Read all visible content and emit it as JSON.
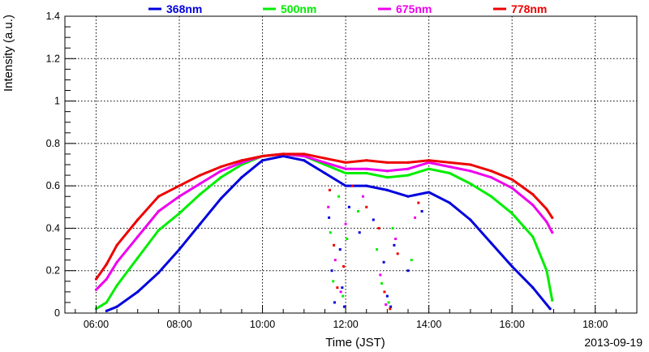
{
  "chart_data": {
    "type": "scatter",
    "xlabel": "Time (JST)",
    "ylabel": "Intensity (a.u.)",
    "date_label": "2013-09-19",
    "xlim": [
      "05:15",
      "19:00"
    ],
    "ylim": [
      0,
      1.4
    ],
    "x_ticks": [
      "06:00",
      "08:00",
      "10:00",
      "12:00",
      "14:00",
      "16:00",
      "18:00"
    ],
    "y_ticks": [
      "0",
      "0.2",
      "0.4",
      "0.6",
      "0.8",
      "1",
      "1.2",
      "1.4"
    ],
    "grid": true,
    "legend_position": "top",
    "series": [
      {
        "name": "368nm",
        "color": "#0000dd",
        "points": [
          [
            "06:15",
            0.01
          ],
          [
            "06:30",
            0.03
          ],
          [
            "07:00",
            0.1
          ],
          [
            "07:30",
            0.19
          ],
          [
            "08:00",
            0.3
          ],
          [
            "08:30",
            0.42
          ],
          [
            "09:00",
            0.54
          ],
          [
            "09:30",
            0.64
          ],
          [
            "10:00",
            0.72
          ],
          [
            "10:30",
            0.74
          ],
          [
            "11:00",
            0.72
          ],
          [
            "11:30",
            0.66
          ],
          [
            "12:00",
            0.6
          ],
          [
            "12:30",
            0.6
          ],
          [
            "13:00",
            0.58
          ],
          [
            "13:30",
            0.55
          ],
          [
            "14:00",
            0.57
          ],
          [
            "14:30",
            0.52
          ],
          [
            "15:00",
            0.44
          ],
          [
            "15:30",
            0.33
          ],
          [
            "16:00",
            0.22
          ],
          [
            "16:30",
            0.12
          ],
          [
            "16:55",
            0.02
          ]
        ],
        "scatter": [
          [
            "11:36",
            0.45
          ],
          [
            "11:40",
            0.2
          ],
          [
            "11:44",
            0.05
          ],
          [
            "11:52",
            0.3
          ],
          [
            "11:55",
            0.12
          ],
          [
            "11:58",
            0.03
          ],
          [
            "12:05",
            0.5
          ],
          [
            "12:20",
            0.38
          ],
          [
            "12:40",
            0.44
          ],
          [
            "12:55",
            0.24
          ],
          [
            "13:00",
            0.08
          ],
          [
            "13:05",
            0.03
          ],
          [
            "13:10",
            0.32
          ],
          [
            "13:30",
            0.2
          ],
          [
            "13:50",
            0.48
          ]
        ]
      },
      {
        "name": "500nm",
        "color": "#00ee00",
        "points": [
          [
            "06:00",
            0.02
          ],
          [
            "06:15",
            0.05
          ],
          [
            "06:30",
            0.13
          ],
          [
            "07:00",
            0.26
          ],
          [
            "07:30",
            0.39
          ],
          [
            "08:00",
            0.47
          ],
          [
            "08:30",
            0.56
          ],
          [
            "09:00",
            0.64
          ],
          [
            "09:30",
            0.7
          ],
          [
            "10:00",
            0.74
          ],
          [
            "10:30",
            0.75
          ],
          [
            "11:00",
            0.74
          ],
          [
            "11:30",
            0.7
          ],
          [
            "12:00",
            0.66
          ],
          [
            "12:30",
            0.66
          ],
          [
            "13:00",
            0.64
          ],
          [
            "13:30",
            0.65
          ],
          [
            "14:00",
            0.68
          ],
          [
            "14:30",
            0.66
          ],
          [
            "15:00",
            0.61
          ],
          [
            "15:30",
            0.55
          ],
          [
            "16:00",
            0.47
          ],
          [
            "16:30",
            0.36
          ],
          [
            "16:50",
            0.2
          ],
          [
            "16:58",
            0.06
          ]
        ],
        "scatter": [
          [
            "11:38",
            0.38
          ],
          [
            "11:42",
            0.15
          ],
          [
            "11:50",
            0.55
          ],
          [
            "11:56",
            0.08
          ],
          [
            "12:02",
            0.35
          ],
          [
            "12:18",
            0.48
          ],
          [
            "12:45",
            0.3
          ],
          [
            "12:52",
            0.14
          ],
          [
            "13:02",
            0.05
          ],
          [
            "13:08",
            0.4
          ],
          [
            "13:35",
            0.25
          ]
        ]
      },
      {
        "name": "675nm",
        "color": "#ee00ee",
        "points": [
          [
            "06:00",
            0.11
          ],
          [
            "06:15",
            0.16
          ],
          [
            "06:30",
            0.24
          ],
          [
            "07:00",
            0.36
          ],
          [
            "07:30",
            0.48
          ],
          [
            "08:00",
            0.55
          ],
          [
            "08:30",
            0.61
          ],
          [
            "09:00",
            0.67
          ],
          [
            "09:30",
            0.71
          ],
          [
            "10:00",
            0.74
          ],
          [
            "10:30",
            0.75
          ],
          [
            "11:00",
            0.74
          ],
          [
            "11:30",
            0.71
          ],
          [
            "12:00",
            0.68
          ],
          [
            "12:30",
            0.68
          ],
          [
            "13:00",
            0.67
          ],
          [
            "13:30",
            0.68
          ],
          [
            "14:00",
            0.71
          ],
          [
            "14:30",
            0.69
          ],
          [
            "15:00",
            0.67
          ],
          [
            "15:30",
            0.64
          ],
          [
            "16:00",
            0.59
          ],
          [
            "16:30",
            0.51
          ],
          [
            "16:50",
            0.43
          ],
          [
            "16:58",
            0.38
          ]
        ],
        "scatter": [
          [
            "11:35",
            0.5
          ],
          [
            "11:45",
            0.25
          ],
          [
            "11:53",
            0.1
          ],
          [
            "12:00",
            0.42
          ],
          [
            "12:25",
            0.55
          ],
          [
            "12:50",
            0.18
          ],
          [
            "12:58",
            0.04
          ],
          [
            "13:12",
            0.35
          ],
          [
            "13:40",
            0.45
          ]
        ]
      },
      {
        "name": "778nm",
        "color": "#ee0000",
        "points": [
          [
            "06:00",
            0.16
          ],
          [
            "06:15",
            0.23
          ],
          [
            "06:30",
            0.32
          ],
          [
            "07:00",
            0.44
          ],
          [
            "07:30",
            0.55
          ],
          [
            "08:00",
            0.6
          ],
          [
            "08:30",
            0.65
          ],
          [
            "09:00",
            0.69
          ],
          [
            "09:30",
            0.72
          ],
          [
            "10:00",
            0.74
          ],
          [
            "10:30",
            0.75
          ],
          [
            "11:00",
            0.75
          ],
          [
            "11:30",
            0.73
          ],
          [
            "12:00",
            0.71
          ],
          [
            "12:30",
            0.72
          ],
          [
            "13:00",
            0.71
          ],
          [
            "13:30",
            0.71
          ],
          [
            "14:00",
            0.72
          ],
          [
            "14:30",
            0.71
          ],
          [
            "15:00",
            0.7
          ],
          [
            "15:30",
            0.67
          ],
          [
            "16:00",
            0.63
          ],
          [
            "16:30",
            0.56
          ],
          [
            "16:50",
            0.49
          ],
          [
            "16:58",
            0.45
          ]
        ],
        "scatter": [
          [
            "11:37",
            0.58
          ],
          [
            "11:43",
            0.32
          ],
          [
            "11:48",
            0.12
          ],
          [
            "11:57",
            0.22
          ],
          [
            "12:10",
            0.6
          ],
          [
            "12:30",
            0.5
          ],
          [
            "12:48",
            0.4
          ],
          [
            "12:56",
            0.1
          ],
          [
            "13:04",
            0.02
          ],
          [
            "13:15",
            0.28
          ],
          [
            "13:45",
            0.52
          ]
        ]
      }
    ]
  }
}
